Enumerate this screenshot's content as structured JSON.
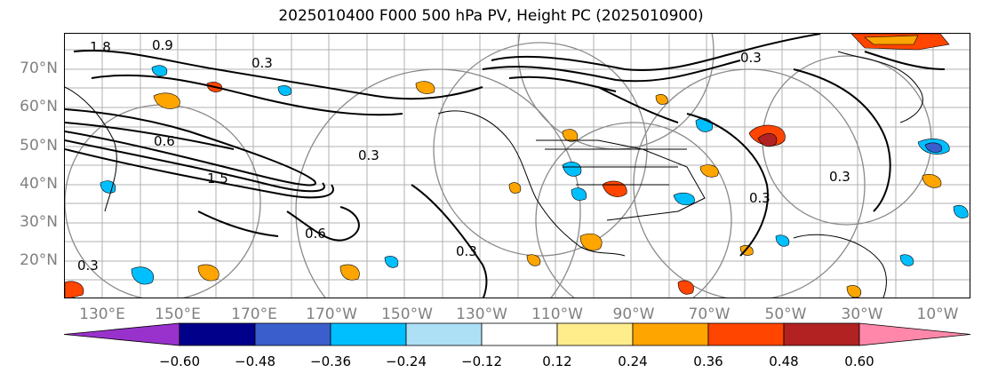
{
  "title": "2025010400 F000 500 hPa PV, Height PC (2025010900)",
  "lat_labels": [
    "70°N",
    "60°N",
    "50°N",
    "40°N",
    "30°N",
    "20°N"
  ],
  "lon_labels": [
    "130°E",
    "150°E",
    "170°E",
    "170°W",
    "150°W",
    "130°W",
    "110°W",
    "90°W",
    "70°W",
    "50°W",
    "30°W",
    "10°W"
  ],
  "contour_labels": [
    "1.8",
    "0.9",
    "0.3",
    "0.6",
    "1.5",
    "0.3",
    "0.6",
    "0.3",
    "0.3",
    "0.3",
    "0.3",
    "0.3"
  ],
  "colorbar": {
    "ticks": [
      "−0.60",
      "−0.48",
      "−0.36",
      "−0.24",
      "−0.12",
      "0.12",
      "0.24",
      "0.36",
      "0.48",
      "0.60"
    ],
    "colors": [
      "#9932CC",
      "#00008B",
      "#3A5FCD",
      "#00BFFF",
      "#ADDFF5",
      "#FFFFFF",
      "#FFEC8B",
      "#FFA500",
      "#FF4500",
      "#B22222",
      "#FF88AA",
      "#FF88AA"
    ]
  }
}
